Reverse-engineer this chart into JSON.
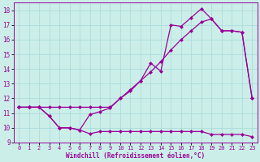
{
  "background_color": "#cceee8",
  "grid_color": "#aadddd",
  "line_color": "#990099",
  "xlabel": "Windchill (Refroidissement éolien,°C)",
  "xlim": [
    -0.5,
    23.5
  ],
  "ylim": [
    9,
    18.5
  ],
  "yticks": [
    9,
    10,
    11,
    12,
    13,
    14,
    15,
    16,
    17,
    18
  ],
  "xticks": [
    0,
    1,
    2,
    3,
    4,
    5,
    6,
    7,
    8,
    9,
    10,
    11,
    12,
    13,
    14,
    15,
    16,
    17,
    18,
    19,
    20,
    21,
    22,
    23
  ],
  "series1_x": [
    0,
    1,
    2,
    3,
    4,
    5,
    6,
    7,
    8,
    9,
    10,
    11,
    12,
    13,
    14,
    15,
    16,
    17,
    18,
    19,
    20,
    21,
    22,
    23
  ],
  "series1_y": [
    11.4,
    11.4,
    11.4,
    10.8,
    10.0,
    10.0,
    9.85,
    9.6,
    9.75,
    9.75,
    9.75,
    9.75,
    9.75,
    9.75,
    9.75,
    9.75,
    9.75,
    9.75,
    9.75,
    9.55,
    9.55,
    9.55,
    9.55,
    9.4
  ],
  "series2_x": [
    0,
    1,
    2,
    3,
    4,
    5,
    6,
    7,
    8,
    9,
    10,
    11,
    12,
    13,
    14,
    15,
    16,
    17,
    18,
    19,
    20,
    21,
    22,
    23
  ],
  "series2_y": [
    11.4,
    11.4,
    11.4,
    11.4,
    11.4,
    11.4,
    11.4,
    11.4,
    11.4,
    11.4,
    12.0,
    12.6,
    13.2,
    13.8,
    14.5,
    15.3,
    16.0,
    16.6,
    17.2,
    17.4,
    16.6,
    16.6,
    16.5,
    12.0
  ],
  "series3_x": [
    0,
    1,
    2,
    3,
    4,
    5,
    6,
    7,
    8,
    9,
    10,
    11,
    12,
    13,
    14,
    15,
    16,
    17,
    18,
    19,
    20,
    21,
    22,
    23
  ],
  "series3_y": [
    11.4,
    11.4,
    11.4,
    10.8,
    10.0,
    10.0,
    9.85,
    10.9,
    11.1,
    11.35,
    12.0,
    12.5,
    13.2,
    14.4,
    13.85,
    17.0,
    16.9,
    17.5,
    18.1,
    17.4,
    16.6,
    16.6,
    16.5,
    12.0
  ],
  "marker": "D",
  "markersize": 2.5,
  "linewidth": 0.9
}
